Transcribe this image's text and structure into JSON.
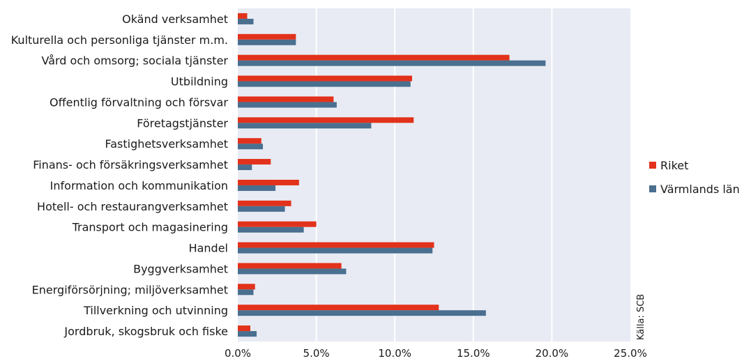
{
  "chart_data": {
    "type": "bar",
    "orientation": "horizontal",
    "categories": [
      "Okänd verksamhet",
      "Kulturella och personliga tjänster m.m.",
      "Vård och omsorg; sociala tjänster",
      "Utbildning",
      "Offentlig förvaltning och försvar",
      "Företagstjänster",
      "Fastighetsverksamhet",
      "Finans- och försäkringsverksamhet",
      "Information och kommunikation",
      "Hotell- och restaurangverksamhet",
      "Transport och magasinering",
      "Handel",
      "Byggverksamhet",
      "Energiförsörjning; miljöverksamhet",
      "Tillverkning och utvinning",
      "Jordbruk, skogsbruk och fiske"
    ],
    "series": [
      {
        "name": "Riket",
        "color": "#e2321b",
        "values": [
          0.6,
          3.7,
          17.3,
          11.1,
          6.1,
          11.2,
          1.5,
          2.1,
          3.9,
          3.4,
          5.0,
          12.5,
          6.6,
          1.1,
          12.8,
          0.8
        ]
      },
      {
        "name": "Värmlands län",
        "color": "#4a6f8f",
        "values": [
          1.0,
          3.7,
          19.6,
          11.0,
          6.3,
          8.5,
          1.6,
          0.9,
          2.4,
          3.0,
          4.2,
          12.4,
          6.9,
          1.0,
          15.8,
          1.2
        ]
      }
    ],
    "xlim": [
      0,
      25
    ],
    "xticks": [
      "0.0%",
      "5.0%",
      "10.0%",
      "15.0%",
      "20.0%",
      "25.0%"
    ],
    "grid": true,
    "plot_background": "#e8ebf3",
    "legend_position": "right",
    "source": "Källa: SCB"
  }
}
